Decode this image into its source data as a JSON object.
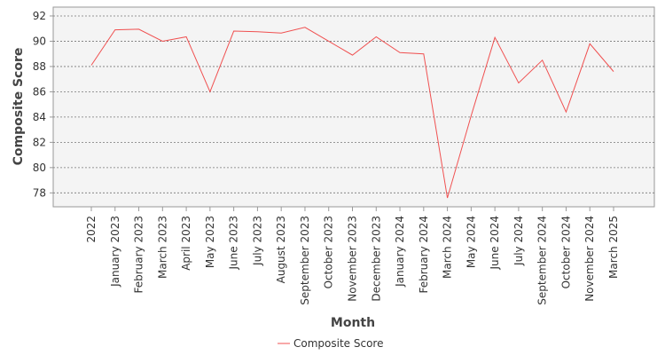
{
  "chart_data": {
    "type": "line",
    "x_label": "Month",
    "y_label": "Composite Score",
    "categories": [
      "2022",
      "January 2023",
      "February 2023",
      "March 2023",
      "April 2023",
      "May 2023",
      "June 2023",
      "July 2023",
      "August 2023",
      "September 2023",
      "October 2023",
      "November 2023",
      "December 2023",
      "January 2024",
      "February 2024",
      "March 2024",
      "May 2024",
      "June 2024",
      "July 2024",
      "September 2024",
      "October 2024",
      "November 2024",
      "March 2025"
    ],
    "series": [
      {
        "name": "Composite Score",
        "color": "#f05050",
        "values": [
          88.1,
          90.9,
          90.95,
          90.0,
          90.35,
          86.0,
          90.8,
          90.75,
          90.65,
          91.1,
          90.0,
          88.9,
          90.35,
          89.1,
          89.0,
          77.6,
          84.1,
          90.3,
          86.7,
          88.5,
          84.4,
          89.8,
          87.6
        ]
      }
    ],
    "ylim": [
      76.9,
      92.7
    ],
    "yticks": [
      78,
      80,
      82,
      84,
      86,
      88,
      90,
      92
    ],
    "grid": true
  }
}
